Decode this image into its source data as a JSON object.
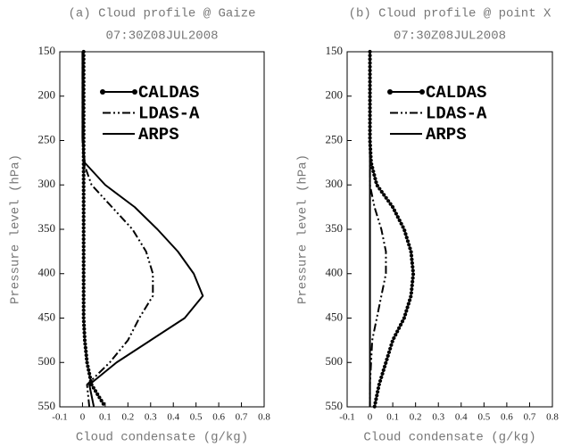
{
  "chart_data": [
    {
      "type": "line",
      "title": "(a) Cloud profile @ Gaize",
      "subtitle": "07:30Z08JUL2008",
      "xlabel": "Cloud condensate (g/kg)",
      "ylabel": "Pressure level (hPa)",
      "y": [
        150,
        175,
        200,
        225,
        250,
        275,
        300,
        325,
        350,
        375,
        400,
        425,
        450,
        475,
        500,
        525,
        550
      ],
      "xlim": [
        -0.1,
        0.8
      ],
      "xticks": [
        -0.1,
        0,
        0.1,
        0.2,
        0.3,
        0.4,
        0.5,
        0.6,
        0.7,
        0.8
      ],
      "ylim": [
        150,
        550
      ],
      "yticks": [
        150,
        200,
        250,
        300,
        350,
        400,
        450,
        500,
        550
      ],
      "y_reversed": true,
      "series": [
        {
          "name": "CALDAS",
          "color": "#000",
          "style": "dots",
          "values": [
            0.005,
            0.005,
            0.005,
            0.005,
            0.005,
            0.005,
            0.005,
            0.005,
            0.005,
            0.005,
            0.005,
            0.005,
            0.005,
            0.01,
            0.02,
            0.04,
            0.1
          ]
        },
        {
          "name": "LDAS-A",
          "color": "#000",
          "style": "dashdot",
          "values": [
            0,
            0,
            0,
            0,
            0,
            0.005,
            0.04,
            0.13,
            0.22,
            0.28,
            0.31,
            0.31,
            0.25,
            0.2,
            0.12,
            0.02,
            0.03
          ]
        },
        {
          "name": "ARPS",
          "color": "#000",
          "style": "solid",
          "values": [
            0,
            0,
            0,
            0,
            0,
            0.01,
            0.1,
            0.23,
            0.33,
            0.42,
            0.49,
            0.53,
            0.45,
            0.3,
            0.15,
            0.03,
            0.05
          ]
        }
      ]
    },
    {
      "type": "line",
      "title": "(b) Cloud profile @ point X",
      "subtitle": "07:30Z08JUL2008",
      "xlabel": "Cloud condensate (g/kg)",
      "ylabel": "Pressure level (hPa)",
      "y": [
        150,
        175,
        200,
        225,
        250,
        275,
        300,
        325,
        350,
        375,
        400,
        425,
        450,
        475,
        500,
        525,
        550
      ],
      "xlim": [
        -0.1,
        0.8
      ],
      "xticks": [
        -0.1,
        0,
        0.1,
        0.2,
        0.3,
        0.4,
        0.5,
        0.6,
        0.7,
        0.8
      ],
      "ylim": [
        150,
        550
      ],
      "yticks": [
        150,
        200,
        250,
        300,
        350,
        400,
        450,
        500,
        550
      ],
      "y_reversed": true,
      "series": [
        {
          "name": "CALDAS",
          "color": "#000",
          "style": "dots",
          "values": [
            0,
            0,
            0,
            0,
            0,
            0.005,
            0.03,
            0.1,
            0.15,
            0.18,
            0.19,
            0.18,
            0.15,
            0.1,
            0.07,
            0.04,
            0.02
          ]
        },
        {
          "name": "LDAS-A",
          "color": "#000",
          "style": "dashdot",
          "values": [
            0,
            0,
            0,
            0,
            0,
            0,
            0,
            0.02,
            0.05,
            0.07,
            0.07,
            0.05,
            0.03,
            0.01,
            0.005,
            0,
            0
          ]
        },
        {
          "name": "ARPS",
          "color": "#000",
          "style": "solid",
          "values": [
            0,
            0,
            0,
            0,
            0,
            0,
            0,
            0,
            0,
            0,
            0,
            0,
            0,
            0,
            0,
            0,
            0
          ]
        }
      ]
    }
  ]
}
